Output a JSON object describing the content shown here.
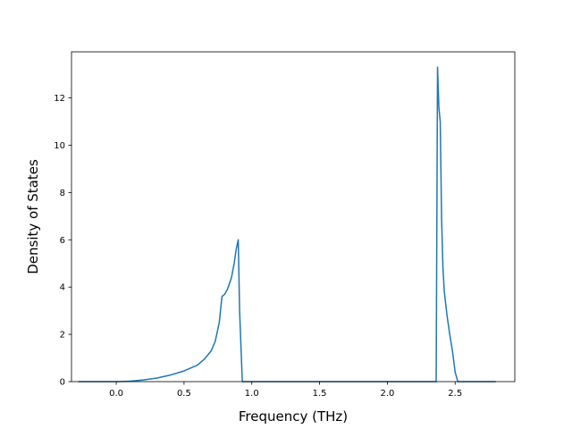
{
  "chart_data": {
    "type": "line",
    "title": "",
    "xlabel": "Frequency (THz)",
    "ylabel": "Density of States",
    "xlim": [
      -0.33,
      2.94
    ],
    "ylim": [
      0,
      13.95
    ],
    "xticks": [
      0.0,
      0.5,
      1.0,
      1.5,
      2.0,
      2.5
    ],
    "xtick_labels": [
      "0.0",
      "0.5",
      "1.0",
      "1.5",
      "2.0",
      "2.5"
    ],
    "yticks": [
      0,
      2,
      4,
      6,
      8,
      10,
      12
    ],
    "ytick_labels": [
      "0",
      "2",
      "4",
      "6",
      "8",
      "10",
      "12"
    ],
    "grid": false,
    "series": [
      {
        "color": "#1f77b4",
        "x": [
          -0.28,
          -0.2,
          -0.1,
          0.0,
          0.1,
          0.2,
          0.3,
          0.4,
          0.5,
          0.6,
          0.65,
          0.7,
          0.73,
          0.76,
          0.78,
          0.8,
          0.82,
          0.85,
          0.87,
          0.885,
          0.9,
          0.91,
          0.93,
          1.0,
          1.5,
          2.0,
          2.36,
          2.37,
          2.38,
          2.39,
          2.4,
          2.41,
          2.42,
          2.44,
          2.46,
          2.48,
          2.5,
          2.52,
          2.54,
          2.6,
          2.8
        ],
        "y": [
          0,
          0,
          0,
          0,
          0.02,
          0.07,
          0.15,
          0.28,
          0.45,
          0.7,
          0.95,
          1.3,
          1.7,
          2.5,
          3.6,
          3.7,
          3.9,
          4.4,
          5.0,
          5.6,
          6.0,
          3.0,
          0,
          0,
          0,
          0,
          0,
          13.3,
          11.6,
          11.0,
          6.9,
          4.8,
          3.8,
          2.8,
          2.0,
          1.3,
          0.4,
          0,
          0,
          0,
          0
        ]
      }
    ]
  }
}
